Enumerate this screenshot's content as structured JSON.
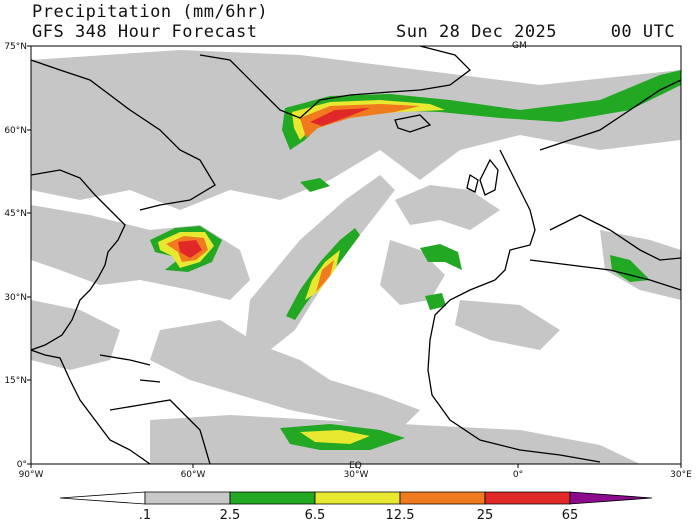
{
  "header": {
    "title": "Precipitation (mm/6hr)",
    "forecast": "GFS 348 Hour Forecast",
    "valid": "Sun 28 Dec 2025     00 UTC"
  },
  "map": {
    "lat_labels": [
      "75°N",
      "60°N",
      "45°N",
      "30°N",
      "15°N",
      "0°"
    ],
    "lon_labels": [
      "90°W",
      "60°W",
      "30°W",
      "0°",
      "30°E"
    ],
    "marks": [
      "GM",
      "EQ",
      "EQ"
    ],
    "extent": {
      "lon_min": -90,
      "lon_max": 30,
      "lat_min": 0,
      "lat_max": 75
    }
  },
  "colorbar": {
    "labels": [
      ".1",
      "2.5",
      "6.5",
      "12.5",
      "25",
      "65"
    ],
    "colors": [
      "#ffffff",
      "#c8c8c8",
      "#22a822",
      "#e8e830",
      "#f07a1e",
      "#e02828",
      "#8c0a8c"
    ]
  }
}
